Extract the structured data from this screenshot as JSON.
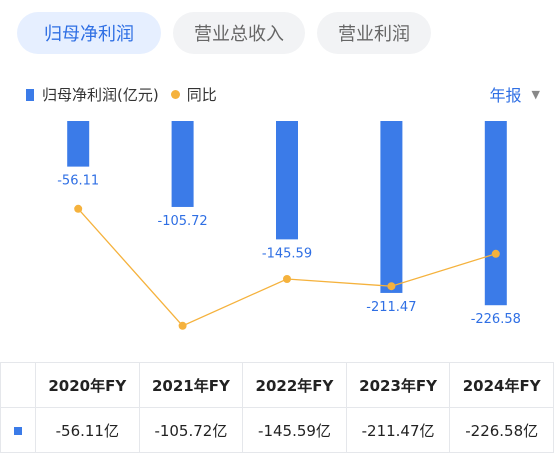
{
  "tabs": [
    "归母净利润",
    "营业总收入",
    "营业利润"
  ],
  "legend": {
    "series1": "归母净利润(亿元)",
    "series2": "同比"
  },
  "period": {
    "label": "年报",
    "caret": "▼"
  },
  "colors": {
    "bar": "#3b7be8",
    "line": "#f5b23d",
    "accent": "#2f6fe4"
  },
  "chart_data": {
    "type": "bar",
    "categories": [
      "2020年FY",
      "2021年FY",
      "2022年FY",
      "2023年FY",
      "2024年FY"
    ],
    "series": [
      {
        "name": "归母净利润(亿元)",
        "values": [
          -56.11,
          -105.72,
          -145.59,
          -211.47,
          -226.58
        ]
      }
    ],
    "line_series": {
      "name": "同比",
      "relative_levels": [
        0.31,
        0.96,
        0.7,
        0.74,
        0.56
      ]
    },
    "bar_labels": [
      "-56.11",
      "-105.72",
      "-145.59",
      "-211.47",
      "-226.58"
    ],
    "ylim": [
      -230,
      0
    ]
  },
  "table": {
    "headers": [
      "2020年FY",
      "2021年FY",
      "2022年FY",
      "2023年FY",
      "2024年FY"
    ],
    "row": [
      "-56.11亿",
      "-105.72亿",
      "-145.59亿",
      "-211.47亿",
      "-226.58亿"
    ]
  }
}
